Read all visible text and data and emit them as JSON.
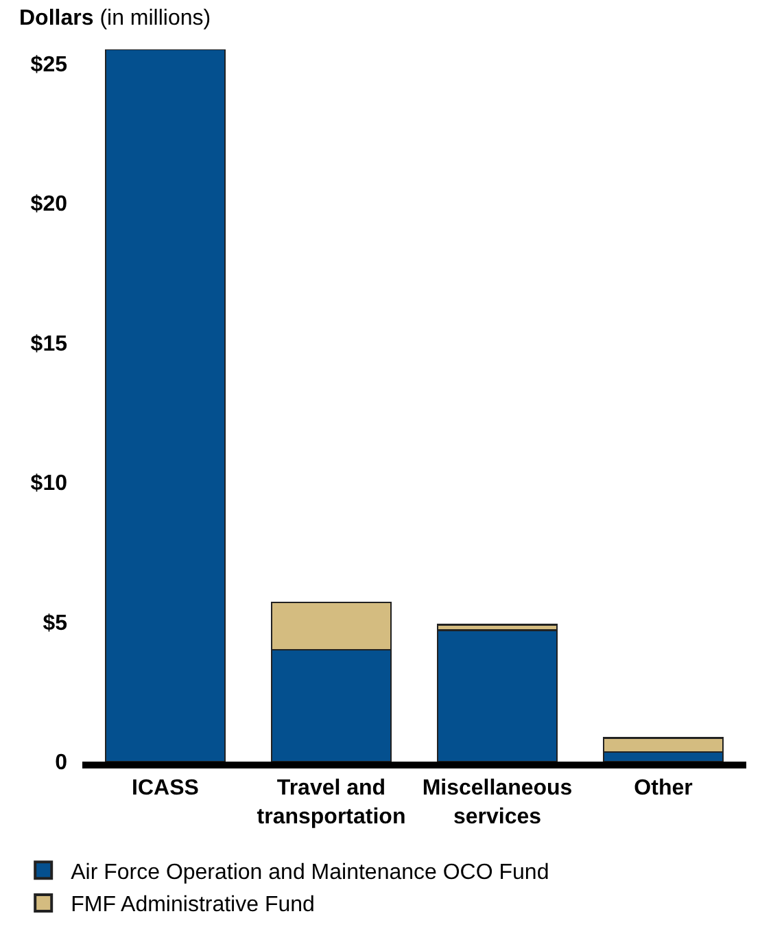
{
  "chart_data": {
    "type": "bar",
    "stacked": true,
    "ylabel": "Dollars (in millions)",
    "categories": [
      "ICASS",
      "Travel and transportation",
      "Miscellaneous services",
      "Other"
    ],
    "series": [
      {
        "name": "Air Force Operation and Maintenance OCO Fund",
        "color": "#04508f",
        "values": [
          25.5,
          4.0,
          4.7,
          0.35
        ]
      },
      {
        "name": "FMF Administrative Fund",
        "color": "#d4bc80",
        "values": [
          null,
          1.7,
          0.2,
          0.5
        ]
      }
    ],
    "yticks": [
      {
        "value": 0,
        "label": "0"
      },
      {
        "value": 5,
        "label": "$5"
      },
      {
        "value": 10,
        "label": "$10"
      },
      {
        "value": 15,
        "label": "$15"
      },
      {
        "value": 20,
        "label": "$20"
      },
      {
        "value": 25,
        "label": "$25"
      }
    ],
    "ylim": [
      0,
      25.5
    ],
    "legend": "bottom left"
  }
}
